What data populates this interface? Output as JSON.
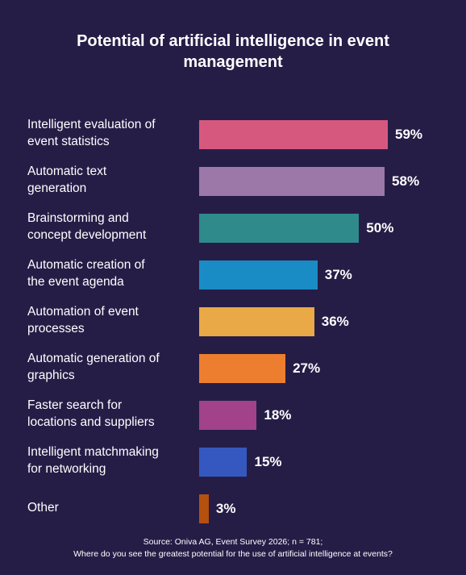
{
  "chart_data": {
    "type": "bar",
    "orientation": "horizontal",
    "title": "Potential of artificial intelligence in event management",
    "categories": [
      "Intelligent evaluation of\nevent statistics",
      "Automatic text\ngeneration",
      "Brainstorming and\nconcept development",
      "Automatic creation of\nthe event agenda",
      "Automation of event\nprocesses",
      "Automatic generation of\ngraphics",
      "Faster search for\nlocations and suppliers",
      "Intelligent matchmaking\nfor networking",
      "Other"
    ],
    "values": [
      59,
      58,
      50,
      37,
      36,
      27,
      18,
      15,
      3
    ],
    "value_labels": [
      "59%",
      "58%",
      "50%",
      "37%",
      "36%",
      "27%",
      "18%",
      "15%",
      "3%"
    ],
    "colors": [
      "#d6587f",
      "#9b78a7",
      "#2f8a8c",
      "#1a8cc5",
      "#e8a946",
      "#ee7e2f",
      "#a2428b",
      "#3558c0",
      "#b5500f"
    ],
    "source": [
      "Source: Oniva AG, Event Survey 2026; n = 781;",
      "Where do you see the greatest potential for the use of artificial intelligence at events?"
    ]
  }
}
